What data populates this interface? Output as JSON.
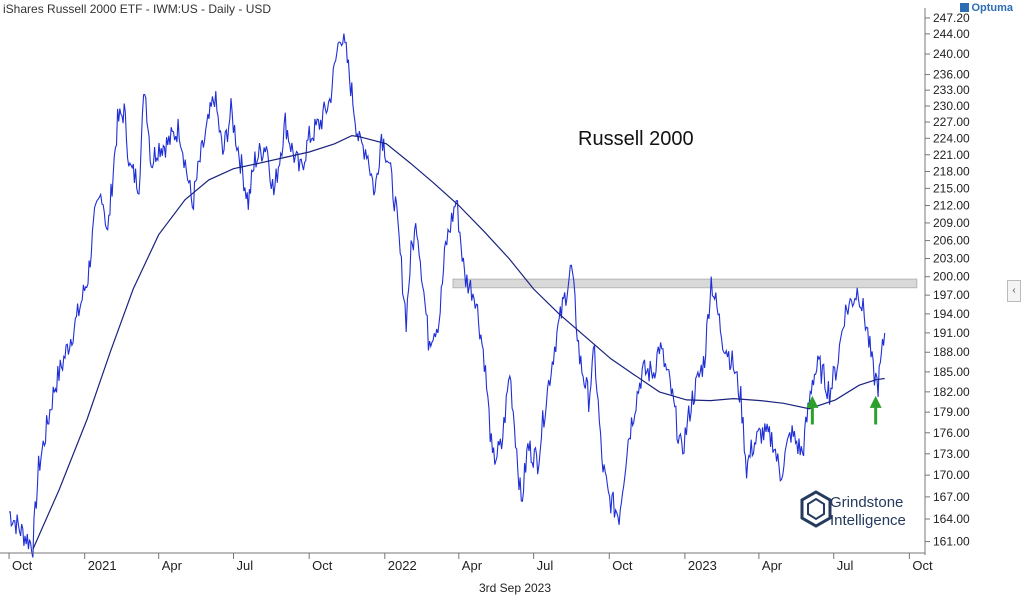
{
  "header": {
    "title": "iShares Russell 2000 ETF - IWM:US - Daily - USD",
    "brand": "Optuma",
    "collapse_glyph": "‹"
  },
  "footer": {
    "date": "3rd Sep 2023"
  },
  "logo": {
    "line1": "Grindstone",
    "line2": "Intelligence"
  },
  "colors": {
    "price": "#1f2fd6",
    "ma": "#1a237e",
    "band": "#d9d9d9",
    "arrow": "#2ca02c",
    "axis": "#555555"
  },
  "chart_data": {
    "type": "line",
    "annotation": "Russell 2000",
    "x_tick_labels": [
      "Oct",
      "2021",
      "Apr",
      "Jul",
      "Oct",
      "2022",
      "Apr",
      "Jul",
      "Oct",
      "2023",
      "Apr",
      "Jul",
      "Oct"
    ],
    "y_tick_labels": [
      "161.00",
      "164.00",
      "167.00",
      "170.00",
      "173.00",
      "176.00",
      "179.00",
      "182.00",
      "185.00",
      "188.00",
      "191.00",
      "194.00",
      "197.00",
      "200.00",
      "203.00",
      "206.00",
      "209.00",
      "212.00",
      "215.00",
      "218.00",
      "221.00",
      "224.00",
      "227.00",
      "230.00",
      "233.00",
      "236.00",
      "240.00",
      "244.00",
      "247.20"
    ],
    "y_scale": "log",
    "ylim": [
      159.5,
      248
    ],
    "resistance_band": {
      "low": 198.2,
      "high": 199.6,
      "start": "2022-03-25",
      "end": "2023-10-10"
    },
    "support_arrows": [
      "2023-06-05",
      "2023-08-21"
    ],
    "series": [
      {
        "name": "Price",
        "points": [
          [
            "2020-10-01",
            165
          ],
          [
            "2020-10-15",
            162.5
          ],
          [
            "2020-10-30",
            160.5
          ],
          [
            "2020-11-06",
            171
          ],
          [
            "2020-11-13",
            175
          ],
          [
            "2020-11-25",
            182.5
          ],
          [
            "2020-12-08",
            187.5
          ],
          [
            "2020-12-22",
            193
          ],
          [
            "2021-01-05",
            200
          ],
          [
            "2021-01-13",
            209.5
          ],
          [
            "2021-01-22",
            214.5
          ],
          [
            "2021-01-29",
            207
          ],
          [
            "2021-02-10",
            227
          ],
          [
            "2021-02-18",
            229
          ],
          [
            "2021-02-25",
            218.5
          ],
          [
            "2021-03-08",
            216
          ],
          [
            "2021-03-15",
            234
          ],
          [
            "2021-03-23",
            219.5
          ],
          [
            "2021-03-31",
            222.5
          ],
          [
            "2021-04-12",
            223
          ],
          [
            "2021-04-26",
            226
          ],
          [
            "2021-05-12",
            212
          ],
          [
            "2021-05-20",
            219
          ],
          [
            "2021-06-08",
            232
          ],
          [
            "2021-06-18",
            221
          ],
          [
            "2021-06-28",
            229
          ],
          [
            "2021-07-08",
            221
          ],
          [
            "2021-07-19",
            212.5
          ],
          [
            "2021-07-27",
            220
          ],
          [
            "2021-08-10",
            223
          ],
          [
            "2021-08-19",
            214
          ],
          [
            "2021-09-02",
            227
          ],
          [
            "2021-09-10",
            222
          ],
          [
            "2021-09-20",
            218
          ],
          [
            "2021-10-01",
            224
          ],
          [
            "2021-10-15",
            227
          ],
          [
            "2021-10-26",
            231
          ],
          [
            "2021-11-08",
            244.5
          ],
          [
            "2021-11-15",
            240
          ],
          [
            "2021-11-26",
            228
          ],
          [
            "2021-12-01",
            223
          ],
          [
            "2021-12-10",
            222
          ],
          [
            "2021-12-20",
            214
          ],
          [
            "2021-12-28",
            225
          ],
          [
            "2022-01-05",
            220
          ],
          [
            "2022-01-14",
            212
          ],
          [
            "2022-01-27",
            193
          ],
          [
            "2022-02-02",
            204
          ],
          [
            "2022-02-09",
            209
          ],
          [
            "2022-02-23",
            190
          ],
          [
            "2022-03-08",
            193
          ],
          [
            "2022-03-16",
            205
          ],
          [
            "2022-03-29",
            213
          ],
          [
            "2022-04-08",
            200
          ],
          [
            "2022-04-21",
            197
          ],
          [
            "2022-05-02",
            187
          ],
          [
            "2022-05-12",
            172
          ],
          [
            "2022-05-23",
            174
          ],
          [
            "2022-06-02",
            185
          ],
          [
            "2022-06-16",
            166
          ],
          [
            "2022-06-24",
            174
          ],
          [
            "2022-07-06",
            172
          ],
          [
            "2022-07-15",
            180
          ],
          [
            "2022-07-28",
            190
          ],
          [
            "2022-08-16",
            201.5
          ],
          [
            "2022-08-26",
            187
          ],
          [
            "2022-09-06",
            181
          ],
          [
            "2022-09-13",
            188
          ],
          [
            "2022-09-22",
            172
          ],
          [
            "2022-09-30",
            167
          ],
          [
            "2022-10-13",
            164.5
          ],
          [
            "2022-10-24",
            175
          ],
          [
            "2022-11-01",
            180
          ],
          [
            "2022-11-10",
            185
          ],
          [
            "2022-11-24",
            185
          ],
          [
            "2022-12-01",
            189
          ],
          [
            "2022-12-14",
            183
          ],
          [
            "2022-12-28",
            173
          ],
          [
            "2023-01-10",
            181
          ],
          [
            "2023-01-25",
            187
          ],
          [
            "2023-02-02",
            199.5
          ],
          [
            "2023-02-16",
            190
          ],
          [
            "2023-03-01",
            186
          ],
          [
            "2023-03-10",
            181
          ],
          [
            "2023-03-17",
            171
          ],
          [
            "2023-03-24",
            174
          ],
          [
            "2023-04-04",
            176
          ],
          [
            "2023-04-18",
            175
          ],
          [
            "2023-04-27",
            170
          ],
          [
            "2023-05-10",
            176
          ],
          [
            "2023-05-24",
            173
          ],
          [
            "2023-06-05",
            184
          ],
          [
            "2023-06-13",
            186
          ],
          [
            "2023-06-26",
            182
          ],
          [
            "2023-07-05",
            186
          ],
          [
            "2023-07-14",
            194
          ],
          [
            "2023-07-31",
            198
          ],
          [
            "2023-08-10",
            192
          ],
          [
            "2023-08-18",
            185
          ],
          [
            "2023-08-24",
            183
          ],
          [
            "2023-09-01",
            191
          ]
        ]
      },
      {
        "name": "200-day MA",
        "points": [
          [
            "2020-10-30",
            160
          ],
          [
            "2020-12-01",
            168
          ],
          [
            "2021-01-04",
            178
          ],
          [
            "2021-02-01",
            188
          ],
          [
            "2021-03-01",
            198
          ],
          [
            "2021-04-01",
            207
          ],
          [
            "2021-05-03",
            213
          ],
          [
            "2021-06-01",
            216.5
          ],
          [
            "2021-07-01",
            218.5
          ],
          [
            "2021-08-02",
            219.5
          ],
          [
            "2021-09-01",
            220.5
          ],
          [
            "2021-10-01",
            221.5
          ],
          [
            "2021-11-01",
            223
          ],
          [
            "2021-11-22",
            224.5
          ],
          [
            "2021-12-01",
            224.3
          ],
          [
            "2022-01-03",
            223
          ],
          [
            "2022-02-01",
            219.5
          ],
          [
            "2022-03-01",
            216
          ],
          [
            "2022-04-01",
            212
          ],
          [
            "2022-05-02",
            207.5
          ],
          [
            "2022-06-01",
            203
          ],
          [
            "2022-07-01",
            198
          ],
          [
            "2022-08-01",
            194
          ],
          [
            "2022-09-01",
            190.5
          ],
          [
            "2022-10-03",
            187
          ],
          [
            "2022-11-01",
            184.5
          ],
          [
            "2022-12-01",
            182
          ],
          [
            "2023-01-03",
            180.8
          ],
          [
            "2023-02-01",
            180.7
          ],
          [
            "2023-03-01",
            181
          ],
          [
            "2023-04-03",
            180.7
          ],
          [
            "2023-05-01",
            180.3
          ],
          [
            "2023-06-01",
            179.5
          ],
          [
            "2023-07-03",
            180.8
          ],
          [
            "2023-08-01",
            183
          ],
          [
            "2023-08-21",
            183.8
          ],
          [
            "2023-09-01",
            184
          ]
        ]
      }
    ]
  }
}
